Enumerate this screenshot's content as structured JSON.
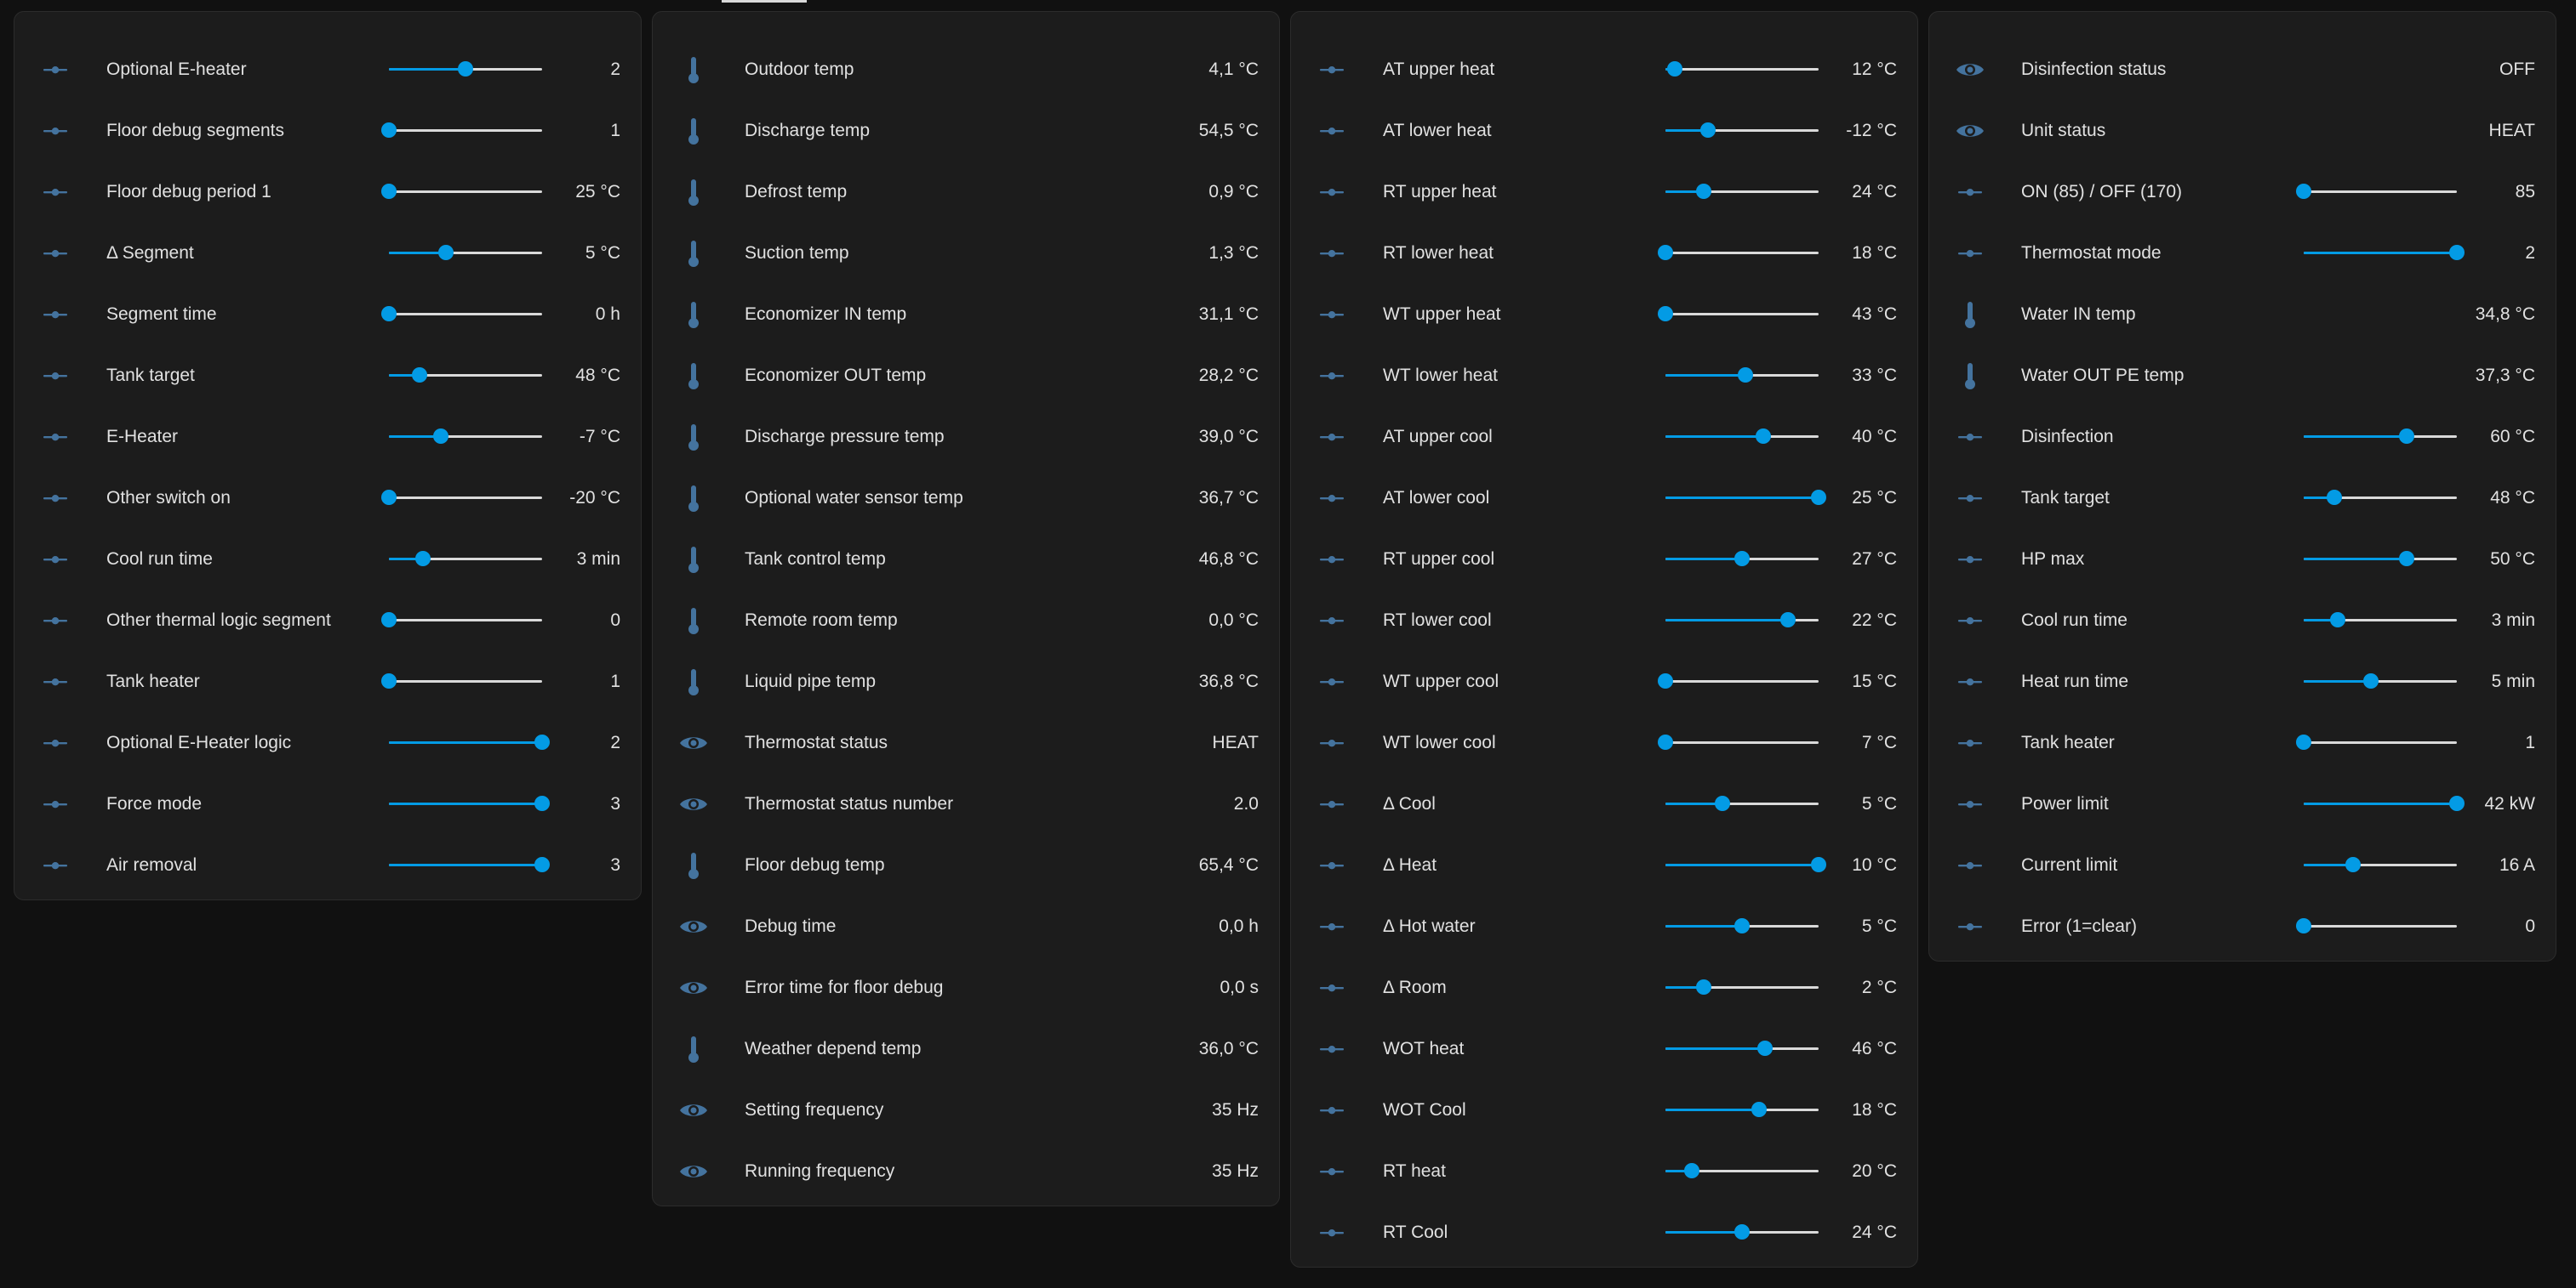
{
  "colors": {
    "accent": "#039be5",
    "icon": "#44739e",
    "background": "#111111",
    "card": "#1c1c1c",
    "text": "#e1e1e1"
  },
  "cards": [
    {
      "rows": [
        {
          "type": "slider",
          "icon": "slider-icon",
          "label": "Optional E-heater",
          "value": "2",
          "fraction": 0.5
        },
        {
          "type": "slider",
          "icon": "slider-icon",
          "label": "Floor debug segments",
          "value": "1",
          "fraction": 0.0
        },
        {
          "type": "slider",
          "icon": "slider-icon",
          "label": "Floor debug period 1",
          "value": "25 °C",
          "fraction": 0.0
        },
        {
          "type": "slider",
          "icon": "slider-icon",
          "label": "Δ Segment",
          "value": "5 °C",
          "fraction": 0.37
        },
        {
          "type": "slider",
          "icon": "slider-icon",
          "label": "Segment time",
          "value": "0 h",
          "fraction": 0.0
        },
        {
          "type": "slider",
          "icon": "slider-icon",
          "label": "Tank target",
          "value": "48 °C",
          "fraction": 0.2
        },
        {
          "type": "slider",
          "icon": "slider-icon",
          "label": "E-Heater",
          "value": "-7 °C",
          "fraction": 0.34
        },
        {
          "type": "slider",
          "icon": "slider-icon",
          "label": "Other switch on",
          "value": "-20 °C",
          "fraction": 0.0
        },
        {
          "type": "slider",
          "icon": "slider-icon",
          "label": "Cool run time",
          "value": "3 min",
          "fraction": 0.22
        },
        {
          "type": "slider",
          "icon": "slider-icon",
          "label": "Other thermal logic segment",
          "value": "0",
          "fraction": 0.0
        },
        {
          "type": "slider",
          "icon": "slider-icon",
          "label": "Tank heater",
          "value": "1",
          "fraction": 0.0
        },
        {
          "type": "slider",
          "icon": "slider-icon",
          "label": "Optional E-Heater logic",
          "value": "2",
          "fraction": 1.0
        },
        {
          "type": "slider",
          "icon": "slider-icon",
          "label": "Force mode",
          "value": "3",
          "fraction": 1.0
        },
        {
          "type": "slider",
          "icon": "slider-icon",
          "label": "Air removal",
          "value": "3",
          "fraction": 1.0
        }
      ]
    },
    {
      "rows": [
        {
          "type": "sensor",
          "icon": "thermometer-icon",
          "label": "Outdoor temp",
          "value": "4,1 °C"
        },
        {
          "type": "sensor",
          "icon": "thermometer-icon",
          "label": "Discharge temp",
          "value": "54,5 °C"
        },
        {
          "type": "sensor",
          "icon": "thermometer-icon",
          "label": "Defrost temp",
          "value": "0,9 °C"
        },
        {
          "type": "sensor",
          "icon": "thermometer-icon",
          "label": "Suction temp",
          "value": "1,3 °C"
        },
        {
          "type": "sensor",
          "icon": "thermometer-icon",
          "label": "Economizer IN temp",
          "value": "31,1 °C"
        },
        {
          "type": "sensor",
          "icon": "thermometer-icon",
          "label": "Economizer OUT temp",
          "value": "28,2 °C"
        },
        {
          "type": "sensor",
          "icon": "thermometer-icon",
          "label": "Discharge pressure temp",
          "value": "39,0 °C"
        },
        {
          "type": "sensor",
          "icon": "thermometer-icon",
          "label": "Optional water sensor temp",
          "value": "36,7 °C"
        },
        {
          "type": "sensor",
          "icon": "thermometer-icon",
          "label": "Tank control temp",
          "value": "46,8 °C"
        },
        {
          "type": "sensor",
          "icon": "thermometer-icon",
          "label": "Remote room temp",
          "value": "0,0 °C"
        },
        {
          "type": "sensor",
          "icon": "thermometer-icon",
          "label": "Liquid pipe temp",
          "value": "36,8 °C"
        },
        {
          "type": "sensor",
          "icon": "eye-icon",
          "label": "Thermostat status",
          "value": "HEAT"
        },
        {
          "type": "sensor",
          "icon": "eye-icon",
          "label": "Thermostat status number",
          "value": "2.0"
        },
        {
          "type": "sensor",
          "icon": "thermometer-icon",
          "label": "Floor debug temp",
          "value": "65,4 °C"
        },
        {
          "type": "sensor",
          "icon": "eye-icon",
          "label": "Debug time",
          "value": "0,0 h"
        },
        {
          "type": "sensor",
          "icon": "eye-icon",
          "label": "Error time for floor debug",
          "value": "0,0 s"
        },
        {
          "type": "sensor",
          "icon": "thermometer-icon",
          "label": "Weather depend temp",
          "value": "36,0 °C"
        },
        {
          "type": "sensor",
          "icon": "eye-icon",
          "label": "Setting frequency",
          "value": "35 Hz"
        },
        {
          "type": "sensor",
          "icon": "eye-icon",
          "label": "Running frequency",
          "value": "35 Hz"
        }
      ]
    },
    {
      "rows": [
        {
          "type": "slider",
          "icon": "slider-icon",
          "label": "AT upper heat",
          "value": "12 °C",
          "fraction": 0.06
        },
        {
          "type": "slider",
          "icon": "slider-icon",
          "label": "AT lower heat",
          "value": "-12 °C",
          "fraction": 0.28
        },
        {
          "type": "slider",
          "icon": "slider-icon",
          "label": "RT upper heat",
          "value": "24 °C",
          "fraction": 0.25
        },
        {
          "type": "slider",
          "icon": "slider-icon",
          "label": "RT lower heat",
          "value": "18 °C",
          "fraction": 0.0
        },
        {
          "type": "slider",
          "icon": "slider-icon",
          "label": "WT upper heat",
          "value": "43 °C",
          "fraction": 0.0
        },
        {
          "type": "slider",
          "icon": "slider-icon",
          "label": "WT lower heat",
          "value": "33 °C",
          "fraction": 0.52
        },
        {
          "type": "slider",
          "icon": "slider-icon",
          "label": "AT upper cool",
          "value": "40 °C",
          "fraction": 0.64
        },
        {
          "type": "slider",
          "icon": "slider-icon",
          "label": "AT lower cool",
          "value": "25 °C",
          "fraction": 1.0
        },
        {
          "type": "slider",
          "icon": "slider-icon",
          "label": "RT upper cool",
          "value": "27 °C",
          "fraction": 0.5
        },
        {
          "type": "slider",
          "icon": "slider-icon",
          "label": "RT lower cool",
          "value": "22 °C",
          "fraction": 0.8
        },
        {
          "type": "slider",
          "icon": "slider-icon",
          "label": "WT upper cool",
          "value": "15 °C",
          "fraction": 0.0
        },
        {
          "type": "slider",
          "icon": "slider-icon",
          "label": "WT lower cool",
          "value": "7 °C",
          "fraction": 0.0
        },
        {
          "type": "slider",
          "icon": "slider-icon",
          "label": "Δ Cool",
          "value": "5 °C",
          "fraction": 0.37
        },
        {
          "type": "slider",
          "icon": "slider-icon",
          "label": "Δ Heat",
          "value": "10 °C",
          "fraction": 1.0
        },
        {
          "type": "slider",
          "icon": "slider-icon",
          "label": "Δ Hot water",
          "value": "5 °C",
          "fraction": 0.5
        },
        {
          "type": "slider",
          "icon": "slider-icon",
          "label": "Δ Room",
          "value": "2 °C",
          "fraction": 0.25
        },
        {
          "type": "slider",
          "icon": "slider-icon",
          "label": "WOT heat",
          "value": "46 °C",
          "fraction": 0.65
        },
        {
          "type": "slider",
          "icon": "slider-icon",
          "label": "WOT Cool",
          "value": "18 °C",
          "fraction": 0.61
        },
        {
          "type": "slider",
          "icon": "slider-icon",
          "label": "RT heat",
          "value": "20 °C",
          "fraction": 0.17
        },
        {
          "type": "slider",
          "icon": "slider-icon",
          "label": "RT Cool",
          "value": "24 °C",
          "fraction": 0.5
        }
      ]
    },
    {
      "rows": [
        {
          "type": "sensor",
          "icon": "eye-icon",
          "label": "Disinfection status",
          "value": "OFF"
        },
        {
          "type": "sensor",
          "icon": "eye-icon",
          "label": "Unit status",
          "value": "HEAT"
        },
        {
          "type": "slider",
          "icon": "slider-icon",
          "label": "ON (85) / OFF (170)",
          "value": "85",
          "fraction": 0.0
        },
        {
          "type": "slider",
          "icon": "slider-icon",
          "label": "Thermostat mode",
          "value": "2",
          "fraction": 1.0
        },
        {
          "type": "sensor",
          "icon": "thermometer-icon",
          "label": "Water IN temp",
          "value": "34,8 °C"
        },
        {
          "type": "sensor",
          "icon": "thermometer-icon",
          "label": "Water OUT PE temp",
          "value": "37,3 °C"
        },
        {
          "type": "slider",
          "icon": "slider-icon",
          "label": "Disinfection",
          "value": "60 °C",
          "fraction": 0.67
        },
        {
          "type": "slider",
          "icon": "slider-icon",
          "label": "Tank target",
          "value": "48 °C",
          "fraction": 0.2
        },
        {
          "type": "slider",
          "icon": "slider-icon",
          "label": "HP max",
          "value": "50 °C",
          "fraction": 0.67
        },
        {
          "type": "slider",
          "icon": "slider-icon",
          "label": "Cool run time",
          "value": "3 min",
          "fraction": 0.22
        },
        {
          "type": "slider",
          "icon": "slider-icon",
          "label": "Heat run time",
          "value": "5 min",
          "fraction": 0.44
        },
        {
          "type": "slider",
          "icon": "slider-icon",
          "label": "Tank heater",
          "value": "1",
          "fraction": 0.0
        },
        {
          "type": "slider",
          "icon": "slider-icon",
          "label": "Power limit",
          "value": "42 kW",
          "fraction": 1.0
        },
        {
          "type": "slider",
          "icon": "slider-icon",
          "label": "Current limit",
          "value": "16 A",
          "fraction": 0.32
        },
        {
          "type": "slider",
          "icon": "slider-icon",
          "label": "Error (1=clear)",
          "value": "0",
          "fraction": 0.0
        }
      ]
    }
  ]
}
